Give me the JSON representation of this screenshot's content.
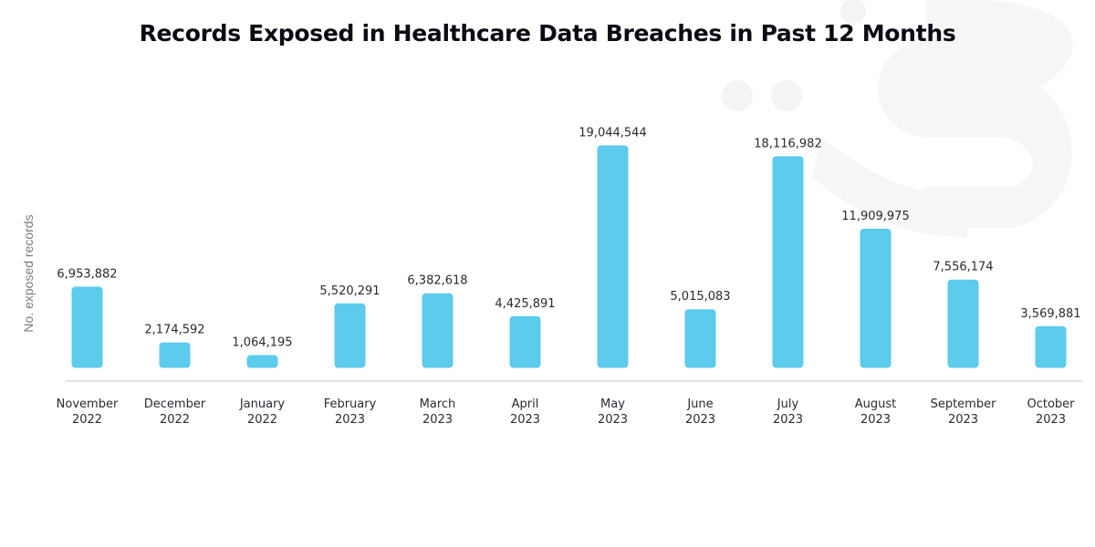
{
  "chart_data": {
    "type": "bar",
    "title": "Records Exposed in Healthcare Data Breaches in Past 12 Months",
    "xlabel": "",
    "ylabel": "No. exposed records",
    "categories": [
      [
        "November",
        "2022"
      ],
      [
        "December",
        "2022"
      ],
      [
        "January",
        "2022"
      ],
      [
        "February",
        "2023"
      ],
      [
        "March",
        "2023"
      ],
      [
        "April",
        "2023"
      ],
      [
        "May",
        "2023"
      ],
      [
        "June",
        "2023"
      ],
      [
        "July",
        "2023"
      ],
      [
        "August",
        "2023"
      ],
      [
        "September",
        "2023"
      ],
      [
        "October",
        "2023"
      ]
    ],
    "values": [
      6953882,
      2174592,
      1064195,
      5520291,
      6382618,
      4425891,
      19044544,
      5015083,
      18116982,
      11909975,
      7556174,
      3569881
    ],
    "value_labels": [
      "6,953,882",
      "2,174,592",
      "1,064,195",
      "5,520,291",
      "6,382,618",
      "4,425,891",
      "19,044,544",
      "5,015,083",
      "18,116,982",
      "11,909,975",
      "7,556,174",
      "3,569,881"
    ],
    "ylim": [
      0,
      19044544
    ],
    "grid": false,
    "legend": "none",
    "bar_color": "#5ccbec",
    "baseline_color": "#d9d9dc"
  }
}
